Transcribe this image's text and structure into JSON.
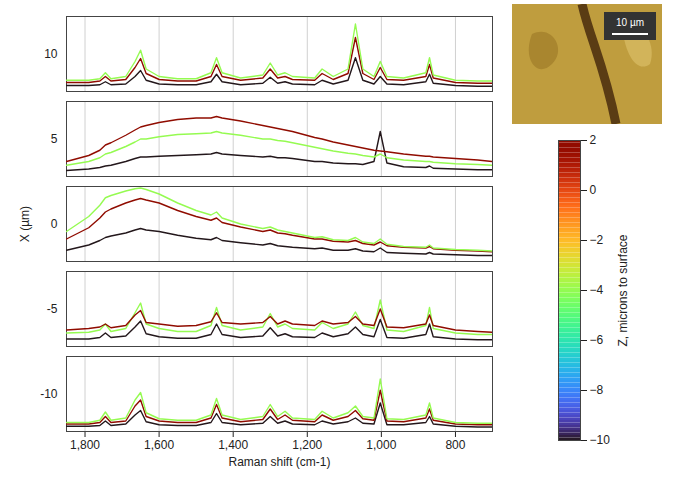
{
  "chart_data": {
    "type": "line",
    "xlabel": "Raman shift (cm-1)",
    "xlim": [
      1850,
      700
    ],
    "xticks": [
      1800,
      1600,
      1400,
      1200,
      1000,
      800
    ],
    "depth_label": "X (µm)",
    "depth_ticks": [
      10,
      5,
      0,
      -5,
      -10
    ],
    "ylim": [
      0,
      1
    ],
    "grid": true,
    "colorbar": {
      "label": "Z, microns to surface",
      "range": [
        -10,
        2
      ],
      "ticks": [
        2,
        0,
        -2,
        -4,
        -6,
        -8,
        -10
      ]
    },
    "inset": {
      "scale_bar": "10 µm"
    },
    "shift": [
      1850,
      1790,
      1760,
      1745,
      1730,
      1690,
      1665,
      1650,
      1635,
      1600,
      1550,
      1500,
      1460,
      1445,
      1430,
      1380,
      1320,
      1300,
      1280,
      1260,
      1240,
      1180,
      1160,
      1130,
      1090,
      1070,
      1050,
      1020,
      1003,
      985,
      940,
      880,
      870,
      860,
      800,
      740,
      700
    ],
    "spectra": [
      {
        "X": 10,
        "Z": -10,
        "values": [
          0.08,
          0.08,
          0.09,
          0.13,
          0.09,
          0.1,
          0.2,
          0.28,
          0.15,
          0.1,
          0.09,
          0.09,
          0.13,
          0.23,
          0.13,
          0.09,
          0.11,
          0.19,
          0.11,
          0.13,
          0.1,
          0.09,
          0.15,
          0.1,
          0.15,
          0.45,
          0.15,
          0.1,
          0.2,
          0.1,
          0.09,
          0.13,
          0.23,
          0.11,
          0.08,
          0.07,
          0.07
        ]
      },
      {
        "X": 10,
        "Z": 2,
        "values": [
          0.12,
          0.12,
          0.14,
          0.2,
          0.14,
          0.16,
          0.32,
          0.44,
          0.24,
          0.16,
          0.14,
          0.14,
          0.2,
          0.36,
          0.2,
          0.15,
          0.18,
          0.3,
          0.18,
          0.2,
          0.16,
          0.15,
          0.24,
          0.16,
          0.24,
          0.72,
          0.24,
          0.16,
          0.32,
          0.16,
          0.15,
          0.2,
          0.36,
          0.18,
          0.12,
          0.11,
          0.11
        ]
      },
      {
        "X": 10,
        "Z": -4,
        "values": [
          0.15,
          0.15,
          0.17,
          0.25,
          0.17,
          0.2,
          0.4,
          0.55,
          0.3,
          0.2,
          0.17,
          0.17,
          0.25,
          0.45,
          0.25,
          0.18,
          0.22,
          0.38,
          0.22,
          0.25,
          0.2,
          0.18,
          0.3,
          0.2,
          0.3,
          0.9,
          0.3,
          0.2,
          0.4,
          0.2,
          0.18,
          0.25,
          0.45,
          0.22,
          0.15,
          0.14,
          0.14
        ]
      },
      {
        "X": 5,
        "Z": -10,
        "values": [
          0.08,
          0.1,
          0.12,
          0.14,
          0.15,
          0.2,
          0.24,
          0.26,
          0.26,
          0.27,
          0.28,
          0.29,
          0.3,
          0.32,
          0.3,
          0.28,
          0.26,
          0.27,
          0.25,
          0.25,
          0.24,
          0.2,
          0.2,
          0.18,
          0.17,
          0.17,
          0.16,
          0.2,
          0.6,
          0.18,
          0.13,
          0.12,
          0.14,
          0.11,
          0.1,
          0.09,
          0.09
        ]
      },
      {
        "X": 5,
        "Z": -4,
        "values": [
          0.15,
          0.2,
          0.25,
          0.3,
          0.32,
          0.4,
          0.46,
          0.5,
          0.5,
          0.53,
          0.56,
          0.57,
          0.58,
          0.6,
          0.58,
          0.55,
          0.5,
          0.5,
          0.48,
          0.47,
          0.45,
          0.39,
          0.37,
          0.34,
          0.31,
          0.3,
          0.28,
          0.26,
          0.3,
          0.25,
          0.22,
          0.2,
          0.2,
          0.19,
          0.17,
          0.16,
          0.15
        ]
      },
      {
        "X": 5,
        "Z": 2,
        "values": [
          0.2,
          0.28,
          0.35,
          0.42,
          0.45,
          0.55,
          0.62,
          0.66,
          0.68,
          0.72,
          0.76,
          0.78,
          0.78,
          0.8,
          0.78,
          0.74,
          0.68,
          0.66,
          0.64,
          0.62,
          0.6,
          0.52,
          0.5,
          0.46,
          0.42,
          0.4,
          0.38,
          0.35,
          0.34,
          0.33,
          0.3,
          0.27,
          0.27,
          0.26,
          0.24,
          0.22,
          0.2
        ]
      },
      {
        "X": 0,
        "Z": -10,
        "values": [
          0.15,
          0.22,
          0.28,
          0.32,
          0.34,
          0.38,
          0.42,
          0.44,
          0.42,
          0.4,
          0.35,
          0.31,
          0.29,
          0.32,
          0.28,
          0.25,
          0.22,
          0.24,
          0.21,
          0.2,
          0.19,
          0.17,
          0.18,
          0.15,
          0.15,
          0.17,
          0.14,
          0.13,
          0.18,
          0.12,
          0.11,
          0.1,
          0.12,
          0.1,
          0.09,
          0.08,
          0.08
        ]
      },
      {
        "X": 0,
        "Z": 2,
        "values": [
          0.3,
          0.45,
          0.58,
          0.66,
          0.7,
          0.78,
          0.82,
          0.84,
          0.82,
          0.78,
          0.68,
          0.6,
          0.55,
          0.58,
          0.52,
          0.46,
          0.4,
          0.42,
          0.38,
          0.37,
          0.35,
          0.3,
          0.3,
          0.27,
          0.26,
          0.28,
          0.24,
          0.22,
          0.26,
          0.21,
          0.19,
          0.18,
          0.2,
          0.17,
          0.15,
          0.14,
          0.13
        ]
      },
      {
        "X": 0,
        "Z": -4,
        "values": [
          0.4,
          0.6,
          0.75,
          0.85,
          0.88,
          0.94,
          0.97,
          0.98,
          0.96,
          0.9,
          0.78,
          0.68,
          0.62,
          0.66,
          0.58,
          0.5,
          0.44,
          0.46,
          0.42,
          0.4,
          0.38,
          0.32,
          0.33,
          0.29,
          0.28,
          0.32,
          0.26,
          0.24,
          0.3,
          0.23,
          0.2,
          0.19,
          0.22,
          0.18,
          0.16,
          0.15,
          0.14
        ]
      },
      {
        "X": -5,
        "Z": -10,
        "values": [
          0.1,
          0.1,
          0.12,
          0.18,
          0.12,
          0.14,
          0.26,
          0.34,
          0.17,
          0.13,
          0.11,
          0.11,
          0.16,
          0.3,
          0.16,
          0.12,
          0.14,
          0.25,
          0.14,
          0.17,
          0.13,
          0.12,
          0.18,
          0.13,
          0.17,
          0.26,
          0.16,
          0.13,
          0.36,
          0.12,
          0.11,
          0.16,
          0.3,
          0.13,
          0.1,
          0.09,
          0.09
        ]
      },
      {
        "X": -5,
        "Z": -4,
        "values": [
          0.18,
          0.19,
          0.22,
          0.3,
          0.2,
          0.24,
          0.45,
          0.58,
          0.3,
          0.24,
          0.2,
          0.2,
          0.28,
          0.52,
          0.28,
          0.22,
          0.26,
          0.44,
          0.26,
          0.3,
          0.24,
          0.22,
          0.32,
          0.24,
          0.3,
          0.46,
          0.28,
          0.24,
          0.62,
          0.22,
          0.2,
          0.28,
          0.52,
          0.24,
          0.18,
          0.16,
          0.16
        ]
      },
      {
        "X": -5,
        "Z": 2,
        "values": [
          0.22,
          0.24,
          0.26,
          0.3,
          0.25,
          0.28,
          0.42,
          0.48,
          0.32,
          0.3,
          0.27,
          0.28,
          0.33,
          0.45,
          0.32,
          0.3,
          0.32,
          0.4,
          0.3,
          0.34,
          0.3,
          0.28,
          0.34,
          0.3,
          0.32,
          0.4,
          0.3,
          0.28,
          0.5,
          0.26,
          0.25,
          0.3,
          0.42,
          0.28,
          0.22,
          0.2,
          0.19
        ]
      },
      {
        "X": -10,
        "Z": -10,
        "values": [
          0.07,
          0.07,
          0.08,
          0.14,
          0.08,
          0.1,
          0.22,
          0.28,
          0.13,
          0.09,
          0.08,
          0.08,
          0.12,
          0.24,
          0.12,
          0.09,
          0.11,
          0.2,
          0.11,
          0.14,
          0.1,
          0.09,
          0.14,
          0.1,
          0.13,
          0.18,
          0.11,
          0.1,
          0.38,
          0.09,
          0.09,
          0.12,
          0.2,
          0.1,
          0.07,
          0.06,
          0.06
        ]
      },
      {
        "X": -10,
        "Z": 2,
        "values": [
          0.1,
          0.1,
          0.12,
          0.2,
          0.12,
          0.14,
          0.34,
          0.42,
          0.2,
          0.14,
          0.12,
          0.12,
          0.18,
          0.36,
          0.18,
          0.13,
          0.16,
          0.3,
          0.16,
          0.22,
          0.15,
          0.13,
          0.22,
          0.15,
          0.2,
          0.28,
          0.17,
          0.15,
          0.55,
          0.14,
          0.13,
          0.18,
          0.3,
          0.15,
          0.1,
          0.09,
          0.09
        ]
      },
      {
        "X": -10,
        "Z": -4,
        "values": [
          0.12,
          0.12,
          0.15,
          0.26,
          0.15,
          0.18,
          0.42,
          0.52,
          0.25,
          0.17,
          0.15,
          0.15,
          0.22,
          0.44,
          0.22,
          0.16,
          0.2,
          0.36,
          0.2,
          0.27,
          0.18,
          0.16,
          0.27,
          0.18,
          0.25,
          0.34,
          0.2,
          0.18,
          0.7,
          0.17,
          0.16,
          0.22,
          0.38,
          0.18,
          0.12,
          0.11,
          0.11
        ]
      }
    ]
  }
}
